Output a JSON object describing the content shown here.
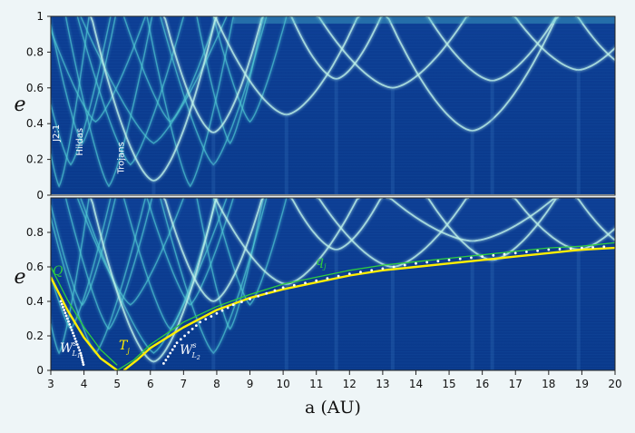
{
  "chart_data": {
    "type": "heatmap",
    "title": "",
    "xlabel": "a (AU)",
    "ylabel": "e",
    "xlim": [
      3,
      20
    ],
    "x_ticks": [
      "3",
      "4",
      "5",
      "6",
      "7",
      "8",
      "9",
      "10",
      "11",
      "12",
      "13",
      "14",
      "15",
      "16",
      "17",
      "18",
      "19",
      "20"
    ],
    "panels": [
      {
        "name": "top",
        "ylim": [
          0,
          1
        ],
        "y_ticks": [
          "0",
          "0.2",
          "0.4",
          "0.6",
          "0.8",
          "1"
        ],
        "annotations": [
          {
            "text": "J2:1",
            "a": 3.25,
            "e": 0.3,
            "rotate": true
          },
          {
            "text": "Hildas",
            "a": 3.95,
            "e": 0.22,
            "rotate": true
          },
          {
            "text": "Trojans",
            "a": 5.2,
            "e": 0.12,
            "rotate": true
          }
        ],
        "resonance_arcs": [
          {
            "a": 6.1,
            "e_min": 0.08
          },
          {
            "a": 7.9,
            "e_min": 0.35
          },
          {
            "a": 10.1,
            "e_min": 0.45
          },
          {
            "a": 13.3,
            "e_min": 0.6
          },
          {
            "a": 15.7,
            "e_min": 0.36
          },
          {
            "a": 16.3,
            "e_min": 0.62
          },
          {
            "a": 18.9,
            "e_min": 0.7
          }
        ]
      },
      {
        "name": "bottom",
        "ylim": [
          0,
          1
        ],
        "y_ticks": [
          "0",
          "0.2",
          "0.4",
          "0.6",
          "0.8"
        ],
        "curves": [
          {
            "name": "Q",
            "label": "Q",
            "color": "#2ecc40",
            "a": [
              3.0,
              3.5,
              4.0,
              4.5,
              5.0
            ],
            "e": [
              0.6,
              0.41,
              0.25,
              0.12,
              0.03
            ]
          },
          {
            "name": "Q-left",
            "label": "",
            "color": "#ffee00",
            "a": [
              3.0,
              3.5,
              4.0,
              4.5,
              5.0
            ],
            "e": [
              0.54,
              0.35,
              0.19,
              0.07,
              0.0
            ]
          },
          {
            "name": "q_j",
            "label": "q_j",
            "color": "#2ecc40",
            "a": [
              5.0,
              5.5,
              6,
              7,
              8,
              9,
              10,
              11,
              12,
              13,
              14,
              15,
              16,
              17,
              18,
              19,
              20
            ],
            "e": [
              0.0,
              0.06,
              0.15,
              0.28,
              0.37,
              0.44,
              0.5,
              0.54,
              0.58,
              0.61,
              0.63,
              0.65,
              0.67,
              0.69,
              0.71,
              0.72,
              0.74
            ]
          },
          {
            "name": "T_j",
            "label": "T_j",
            "color": "#ffee00",
            "a": [
              5.2,
              5.6,
              6,
              7,
              8,
              9,
              10,
              11,
              12,
              13,
              14,
              15,
              16,
              17,
              18,
              19,
              20
            ],
            "e": [
              0.0,
              0.06,
              0.13,
              0.25,
              0.35,
              0.42,
              0.47,
              0.51,
              0.55,
              0.58,
              0.6,
              0.62,
              0.64,
              0.66,
              0.68,
              0.7,
              0.71
            ]
          }
        ],
        "dotted_curves": [
          {
            "name": "W_L1",
            "a": [
              3.3,
              3.5,
              3.7,
              3.9,
              4.0
            ],
            "e": [
              0.4,
              0.3,
              0.2,
              0.1,
              0.02
            ]
          },
          {
            "name": "W_L2",
            "a": [
              6.4,
              6.8,
              7.5,
              8.5,
              10,
              12,
              14,
              16,
              18,
              20
            ],
            "e": [
              0.04,
              0.16,
              0.28,
              0.38,
              0.48,
              0.56,
              0.62,
              0.66,
              0.7,
              0.72
            ]
          }
        ],
        "labels": {
          "Q": "Q",
          "q_j_main": "q",
          "q_j_sub": "j",
          "T_j_main": "T",
          "T_j_sub": "j",
          "W_L1_main": "W",
          "W_L1_sup": "s",
          "W_L1_sub": "L",
          "W_L1_subsub": "1",
          "W_L2_main": "W",
          "W_L2_sup": "s",
          "W_L2_sub": "L",
          "W_L2_subsub": "2"
        }
      }
    ],
    "colors": {
      "background": "#0b3d91",
      "band_light": "#bff3ea",
      "band_mid": "#4fc7d2",
      "green_curve": "#2ecc40",
      "yellow_curve": "#ffee00",
      "dots": "#ffffff"
    }
  }
}
